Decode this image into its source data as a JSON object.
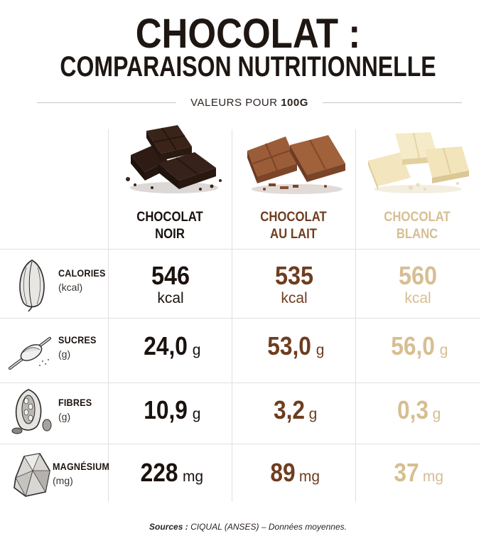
{
  "header": {
    "title_line1": "CHOCOLAT :",
    "title_line2": "COMPARAISON NUTRITIONNELLE",
    "subtitle_prefix": "VALEURS POUR ",
    "subtitle_bold": "100G"
  },
  "products": [
    {
      "line1": "CHOCOLAT",
      "line2": "NOIR",
      "color": "#1a120e"
    },
    {
      "line1": "CHOCOLAT",
      "line2": "AU LAIT",
      "color": "#6e3d1f"
    },
    {
      "line1": "CHOCOLAT",
      "line2": "BLANC",
      "color": "#d7be92"
    }
  ],
  "rows": [
    {
      "nutrient": "CALORIES",
      "unit": "(kcal)",
      "icon": "cacao-pod-icon",
      "values": [
        {
          "num": "546",
          "unit": "kcal"
        },
        {
          "num": "535",
          "unit": "kcal"
        },
        {
          "num": "560",
          "unit": "kcal"
        }
      ]
    },
    {
      "nutrient": "SUCRES",
      "unit": "(g)",
      "icon": "sugar-spoon-icon",
      "values": [
        {
          "num": "24,0",
          "unit": "g"
        },
        {
          "num": "53,0",
          "unit": "g"
        },
        {
          "num": "56,0",
          "unit": "g"
        }
      ]
    },
    {
      "nutrient": "FIBRES",
      "unit": "(g)",
      "icon": "open-cacao-pod-icon",
      "values": [
        {
          "num": "10,9",
          "unit": "g"
        },
        {
          "num": "3,2",
          "unit": "g"
        },
        {
          "num": "0,3",
          "unit": "g"
        }
      ]
    },
    {
      "nutrient": "MAGNÉSIUM",
      "unit": "(mg)",
      "icon": "mineral-rock-icon",
      "values": [
        {
          "num": "228",
          "unit": "mg"
        },
        {
          "num": "89",
          "unit": "mg"
        },
        {
          "num": "37",
          "unit": "mg"
        }
      ]
    }
  ],
  "footer": {
    "sources_label": "Sources :",
    "sources_text": " CIQUAL (ANSES) – Données moyennes."
  }
}
